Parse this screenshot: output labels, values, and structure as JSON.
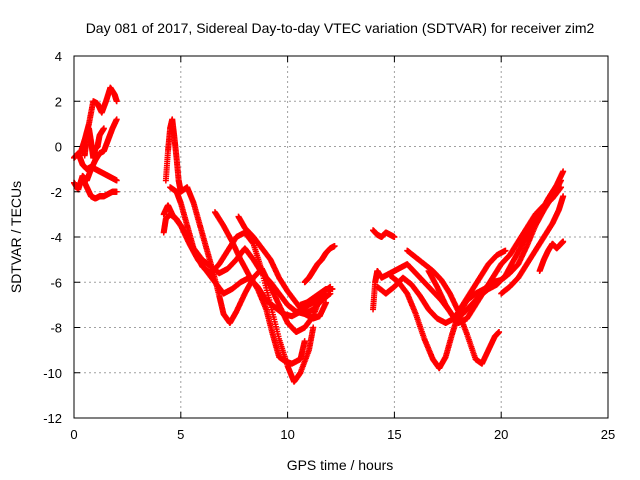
{
  "chart_data": {
    "type": "scatter",
    "title": "Day 081 of 2017, Sidereal Day-to-day VTEC variation (SDTVAR) for receiver zim2",
    "xlabel": "GPS time / hours",
    "ylabel": "SDTVAR / TECUs",
    "xlim": [
      0,
      25
    ],
    "ylim": [
      -12,
      4
    ],
    "xticks": [
      0,
      5,
      10,
      15,
      20,
      25
    ],
    "yticks": [
      -12,
      -10,
      -8,
      -6,
      -4,
      -2,
      0,
      2,
      4
    ],
    "grid": true,
    "marker": "+",
    "color": "#ff0000",
    "series": [
      {
        "points": [
          [
            0.0,
            -0.5
          ],
          [
            0.2,
            -0.3
          ],
          [
            0.4,
            -0.8
          ],
          [
            0.6,
            -1.0
          ],
          [
            0.8,
            -0.9
          ],
          [
            1.0,
            -1.0
          ],
          [
            1.2,
            -1.1
          ],
          [
            1.4,
            -1.2
          ],
          [
            1.6,
            -1.3
          ],
          [
            1.8,
            -1.4
          ],
          [
            2.0,
            -1.5
          ]
        ]
      },
      {
        "points": [
          [
            0.0,
            -1.6
          ],
          [
            0.2,
            -1.9
          ],
          [
            0.4,
            -1.3
          ],
          [
            0.6,
            -1.5
          ],
          [
            0.8,
            -1.0
          ],
          [
            1.0,
            -0.6
          ],
          [
            1.2,
            -0.3
          ],
          [
            1.4,
            -0.2
          ],
          [
            1.6,
            0.3
          ],
          [
            1.8,
            0.8
          ],
          [
            2.0,
            1.2
          ]
        ]
      },
      {
        "points": [
          [
            0.3,
            -0.3
          ],
          [
            0.5,
            0.3
          ],
          [
            0.7,
            1.0
          ],
          [
            0.9,
            2.0
          ],
          [
            1.1,
            1.9
          ],
          [
            1.3,
            1.5
          ],
          [
            1.5,
            2.0
          ],
          [
            1.7,
            2.6
          ],
          [
            1.9,
            2.3
          ],
          [
            2.0,
            2.0
          ]
        ]
      },
      {
        "points": [
          [
            0.4,
            -1.4
          ],
          [
            0.6,
            -1.8
          ],
          [
            0.8,
            -2.2
          ],
          [
            1.0,
            -2.3
          ],
          [
            1.2,
            -2.2
          ],
          [
            1.4,
            -2.2
          ],
          [
            1.6,
            -2.1
          ],
          [
            1.8,
            -2.0
          ],
          [
            2.0,
            -2.0
          ]
        ]
      },
      {
        "points": [
          [
            0.5,
            -0.4
          ],
          [
            0.6,
            0.4
          ],
          [
            0.7,
            0.8
          ],
          [
            0.8,
            0.2
          ],
          [
            0.9,
            -0.5
          ],
          [
            1.0,
            -0.1
          ],
          [
            1.1,
            0.0
          ],
          [
            1.2,
            0.5
          ],
          [
            1.4,
            0.8
          ]
        ]
      },
      {
        "points": [
          [
            4.2,
            -3.8
          ],
          [
            4.3,
            -3.2
          ],
          [
            4.5,
            -3.0
          ],
          [
            4.8,
            -3.2
          ],
          [
            5.2,
            -3.8
          ],
          [
            5.6,
            -4.5
          ],
          [
            6.0,
            -5.0
          ],
          [
            6.4,
            -5.3
          ],
          [
            6.8,
            -5.6
          ],
          [
            7.2,
            -5.4
          ],
          [
            7.6,
            -5.0
          ],
          [
            8.0,
            -4.5
          ],
          [
            8.4,
            -5.0
          ],
          [
            8.8,
            -5.6
          ],
          [
            9.2,
            -6.0
          ],
          [
            9.6,
            -6.5
          ],
          [
            10.0,
            -7.0
          ],
          [
            10.4,
            -7.3
          ],
          [
            10.8,
            -7.4
          ],
          [
            11.2,
            -7.2
          ],
          [
            11.6,
            -6.8
          ],
          [
            12.0,
            -6.5
          ]
        ]
      },
      {
        "points": [
          [
            4.2,
            -3.0
          ],
          [
            4.4,
            -2.6
          ],
          [
            4.6,
            -3.0
          ],
          [
            5.0,
            -3.5
          ],
          [
            5.4,
            -4.3
          ],
          [
            5.8,
            -5.0
          ],
          [
            6.2,
            -5.5
          ],
          [
            6.6,
            -6.0
          ],
          [
            7.0,
            -6.5
          ],
          [
            7.4,
            -6.3
          ],
          [
            7.8,
            -6.0
          ],
          [
            8.2,
            -5.8
          ],
          [
            8.6,
            -6.2
          ],
          [
            9.0,
            -6.8
          ],
          [
            9.4,
            -7.1
          ],
          [
            9.8,
            -7.4
          ],
          [
            10.2,
            -7.5
          ],
          [
            10.6,
            -7.3
          ],
          [
            11.0,
            -7.0
          ],
          [
            11.4,
            -6.8
          ],
          [
            11.8,
            -6.6
          ]
        ]
      },
      {
        "points": [
          [
            4.3,
            -1.5
          ],
          [
            4.4,
            -0.2
          ],
          [
            4.5,
            0.8
          ],
          [
            4.6,
            1.2
          ],
          [
            4.7,
            0.4
          ],
          [
            4.8,
            -0.5
          ],
          [
            4.9,
            -1.5
          ],
          [
            5.0,
            -2.0
          ],
          [
            5.3,
            -1.8
          ],
          [
            5.6,
            -2.5
          ],
          [
            5.9,
            -3.5
          ],
          [
            6.2,
            -4.5
          ],
          [
            6.5,
            -5.5
          ],
          [
            6.8,
            -6.6
          ],
          [
            7.0,
            -7.4
          ],
          [
            7.3,
            -7.8
          ],
          [
            7.6,
            -7.3
          ],
          [
            8.0,
            -6.5
          ],
          [
            8.4,
            -5.8
          ],
          [
            8.8,
            -5.4
          ],
          [
            9.2,
            -6.2
          ],
          [
            9.6,
            -7.0
          ],
          [
            10.0,
            -7.8
          ],
          [
            10.4,
            -8.2
          ],
          [
            10.8,
            -8.0
          ],
          [
            11.2,
            -7.5
          ],
          [
            11.6,
            -6.5
          ],
          [
            12.0,
            -6.2
          ]
        ]
      },
      {
        "points": [
          [
            4.5,
            -1.8
          ],
          [
            4.8,
            -2.0
          ],
          [
            5.0,
            -2.5
          ],
          [
            5.3,
            -3.5
          ],
          [
            5.6,
            -4.5
          ],
          [
            6.0,
            -5.3
          ],
          [
            6.4,
            -5.6
          ],
          [
            6.8,
            -5.2
          ],
          [
            7.2,
            -4.6
          ],
          [
            7.6,
            -4.0
          ],
          [
            8.0,
            -3.8
          ],
          [
            8.4,
            -4.3
          ],
          [
            8.8,
            -5.5
          ],
          [
            9.2,
            -7.0
          ],
          [
            9.6,
            -8.5
          ],
          [
            10.0,
            -9.7
          ],
          [
            10.3,
            -10.4
          ],
          [
            10.6,
            -10.0
          ],
          [
            11.0,
            -9.0
          ],
          [
            11.2,
            -8.0
          ]
        ]
      },
      {
        "points": [
          [
            6.6,
            -2.9
          ],
          [
            7.0,
            -3.5
          ],
          [
            7.4,
            -4.2
          ],
          [
            7.8,
            -5.0
          ],
          [
            8.2,
            -5.7
          ],
          [
            8.6,
            -6.3
          ],
          [
            9.0,
            -7.2
          ],
          [
            9.3,
            -8.3
          ],
          [
            9.6,
            -9.3
          ],
          [
            9.9,
            -9.5
          ],
          [
            10.2,
            -9.6
          ],
          [
            10.6,
            -9.4
          ],
          [
            10.8,
            -8.6
          ]
        ]
      },
      {
        "points": [
          [
            7.7,
            -3.1
          ],
          [
            8.0,
            -3.6
          ],
          [
            8.4,
            -4.0
          ],
          [
            8.8,
            -4.5
          ],
          [
            9.2,
            -5.0
          ],
          [
            9.6,
            -5.8
          ],
          [
            10.0,
            -6.4
          ],
          [
            10.4,
            -6.9
          ],
          [
            10.8,
            -7.4
          ],
          [
            11.2,
            -7.6
          ],
          [
            11.5,
            -7.5
          ],
          [
            11.8,
            -6.9
          ]
        ]
      },
      {
        "points": [
          [
            10.8,
            -6.0
          ],
          [
            11.0,
            -5.8
          ],
          [
            11.2,
            -5.5
          ],
          [
            11.4,
            -5.2
          ],
          [
            11.6,
            -5.0
          ],
          [
            11.8,
            -4.7
          ],
          [
            12.0,
            -4.5
          ],
          [
            12.2,
            -4.4
          ]
        ]
      },
      {
        "points": [
          [
            10.6,
            -7.0
          ],
          [
            10.9,
            -6.9
          ],
          [
            11.2,
            -6.7
          ],
          [
            11.5,
            -6.5
          ],
          [
            11.8,
            -6.3
          ],
          [
            12.1,
            -6.3
          ]
        ]
      },
      {
        "points": [
          [
            14.0,
            -3.7
          ],
          [
            14.2,
            -3.9
          ],
          [
            14.4,
            -4.0
          ],
          [
            14.6,
            -3.8
          ],
          [
            14.8,
            -3.9
          ],
          [
            15.0,
            -4.0
          ]
        ]
      },
      {
        "points": [
          [
            14.0,
            -7.2
          ],
          [
            14.1,
            -6.0
          ],
          [
            14.2,
            -5.5
          ],
          [
            14.4,
            -5.8
          ],
          [
            14.8,
            -5.6
          ],
          [
            15.2,
            -5.4
          ],
          [
            15.6,
            -5.2
          ],
          [
            16.0,
            -5.6
          ],
          [
            16.4,
            -6.0
          ],
          [
            16.8,
            -6.4
          ],
          [
            17.2,
            -6.8
          ],
          [
            17.6,
            -7.3
          ],
          [
            18.0,
            -7.8
          ],
          [
            18.4,
            -7.6
          ],
          [
            18.8,
            -7.0
          ],
          [
            19.2,
            -6.4
          ],
          [
            19.6,
            -5.8
          ],
          [
            20.0,
            -5.2
          ],
          [
            20.4,
            -4.8
          ],
          [
            20.8,
            -4.2
          ],
          [
            21.2,
            -3.6
          ],
          [
            21.6,
            -3.0
          ],
          [
            22.0,
            -2.6
          ],
          [
            22.4,
            -2.3
          ],
          [
            22.8,
            -1.8
          ]
        ]
      },
      {
        "points": [
          [
            14.2,
            -6.2
          ],
          [
            14.6,
            -6.5
          ],
          [
            15.0,
            -6.2
          ],
          [
            15.4,
            -5.8
          ],
          [
            15.8,
            -6.1
          ],
          [
            16.2,
            -6.6
          ],
          [
            16.6,
            -7.2
          ],
          [
            17.0,
            -7.6
          ],
          [
            17.4,
            -7.8
          ],
          [
            17.8,
            -7.6
          ],
          [
            18.2,
            -7.0
          ],
          [
            18.6,
            -6.4
          ],
          [
            19.0,
            -5.8
          ],
          [
            19.4,
            -5.2
          ],
          [
            19.8,
            -4.8
          ],
          [
            20.2,
            -4.6
          ]
        ]
      },
      {
        "points": [
          [
            14.8,
            -5.7
          ],
          [
            15.2,
            -6.0
          ],
          [
            15.6,
            -6.5
          ],
          [
            16.0,
            -7.4
          ],
          [
            16.4,
            -8.5
          ],
          [
            16.8,
            -9.4
          ],
          [
            17.1,
            -9.8
          ],
          [
            17.4,
            -9.3
          ],
          [
            17.7,
            -8.3
          ],
          [
            18.0,
            -7.4
          ],
          [
            18.4,
            -6.8
          ],
          [
            18.8,
            -6.5
          ],
          [
            19.2,
            -6.3
          ],
          [
            19.6,
            -6.0
          ],
          [
            20.0,
            -5.9
          ],
          [
            20.4,
            -5.6
          ],
          [
            20.8,
            -5.2
          ],
          [
            21.2,
            -4.4
          ],
          [
            21.6,
            -3.5
          ],
          [
            22.0,
            -2.8
          ],
          [
            22.4,
            -2.2
          ],
          [
            22.8,
            -1.5
          ]
        ]
      },
      {
        "points": [
          [
            15.6,
            -4.6
          ],
          [
            16.0,
            -4.9
          ],
          [
            16.4,
            -5.2
          ],
          [
            16.8,
            -5.5
          ],
          [
            17.2,
            -5.9
          ],
          [
            17.6,
            -6.5
          ],
          [
            18.0,
            -7.3
          ],
          [
            18.4,
            -8.3
          ],
          [
            18.8,
            -9.4
          ],
          [
            19.1,
            -9.6
          ],
          [
            19.4,
            -9.0
          ],
          [
            19.7,
            -8.4
          ],
          [
            19.9,
            -8.2
          ]
        ]
      },
      {
        "points": [
          [
            16.6,
            -5.5
          ],
          [
            17.0,
            -6.2
          ],
          [
            17.4,
            -7.0
          ],
          [
            17.8,
            -7.6
          ],
          [
            18.2,
            -7.4
          ],
          [
            18.6,
            -7.0
          ],
          [
            19.0,
            -6.6
          ],
          [
            19.4,
            -6.3
          ],
          [
            19.8,
            -6.1
          ],
          [
            20.2,
            -5.7
          ],
          [
            20.6,
            -5.0
          ],
          [
            21.0,
            -4.3
          ],
          [
            21.4,
            -3.6
          ],
          [
            21.8,
            -3.0
          ],
          [
            22.2,
            -2.3
          ],
          [
            22.6,
            -1.7
          ],
          [
            22.9,
            -1.1
          ]
        ]
      },
      {
        "points": [
          [
            20.0,
            -6.5
          ],
          [
            20.4,
            -6.2
          ],
          [
            20.8,
            -5.8
          ],
          [
            21.2,
            -5.2
          ],
          [
            21.6,
            -4.6
          ],
          [
            22.0,
            -4.0
          ],
          [
            22.4,
            -3.4
          ],
          [
            22.7,
            -2.8
          ],
          [
            22.9,
            -2.2
          ]
        ]
      },
      {
        "points": [
          [
            21.8,
            -5.5
          ],
          [
            22.0,
            -5.0
          ],
          [
            22.2,
            -4.6
          ],
          [
            22.4,
            -4.3
          ],
          [
            22.6,
            -4.5
          ],
          [
            22.8,
            -4.3
          ],
          [
            22.9,
            -4.2
          ]
        ]
      }
    ]
  }
}
